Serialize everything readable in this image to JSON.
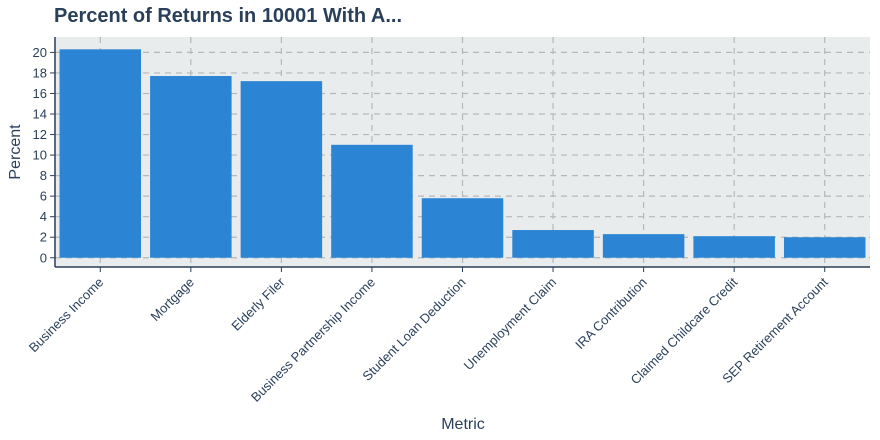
{
  "chart_data": {
    "type": "bar",
    "title": "Percent of Returns in 10001 With A...",
    "xlabel": "Metric",
    "ylabel": "Percent",
    "categories": [
      "Business Income",
      "Mortgage",
      "Elderly Filer",
      "Business Partnership Income",
      "Student Loan Deduction",
      "Unemployment Claim",
      "IRA Contribution",
      "Claimed Childcare Credit",
      "SEP Retirement Account"
    ],
    "values": [
      20.3,
      17.7,
      17.2,
      11.0,
      5.8,
      2.7,
      2.3,
      2.1,
      2.0
    ],
    "yticks": [
      "0",
      "2",
      "4",
      "6",
      "8",
      "10",
      "12",
      "14",
      "16",
      "18",
      "20"
    ],
    "ylim": [
      -0.9,
      21.5
    ],
    "grid": true,
    "colors": {
      "bar": "#2b85d4",
      "panel": "#e8ecec",
      "grid": "#b4b8b8",
      "axis": "#2a3f5a"
    }
  }
}
